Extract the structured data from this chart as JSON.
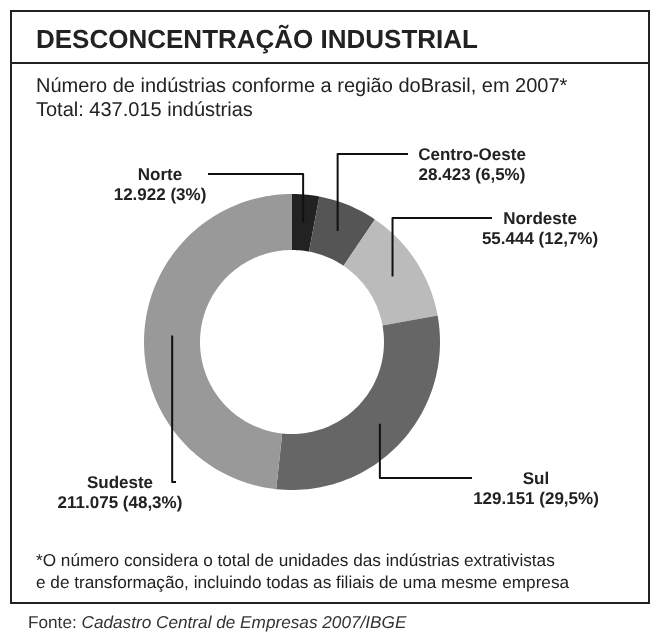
{
  "chart_data": {
    "type": "donut",
    "title": "DESCONCENTRAÇÃO INDUSTRIAL",
    "subtitle": "Número de indústrias conforme a região doBrasil, em 2007*\nTotal: 437.015 indústrias",
    "categories": [
      "Norte",
      "Centro-Oeste",
      "Nordeste",
      "Sul",
      "Sudeste"
    ],
    "values": [
      12922,
      28423,
      55444,
      129151,
      211075
    ],
    "value_labels": [
      "12.922 (3%)",
      "28.423 (6,5%)",
      "55.444 (12,7%)",
      "129.151 (29,5%)",
      "211.075 (48,3%)"
    ],
    "colors": [
      "#222222",
      "#555555",
      "#bbbbbb",
      "#666666",
      "#999999"
    ],
    "annotations": [
      "*O número considera o total de unidades das indústrias extrativistas\ne de transformação, incluindo todas as filiais de uma mesme empresa",
      "Fonte: Cadastro Central de Empresas 2007/IBGE"
    ]
  }
}
